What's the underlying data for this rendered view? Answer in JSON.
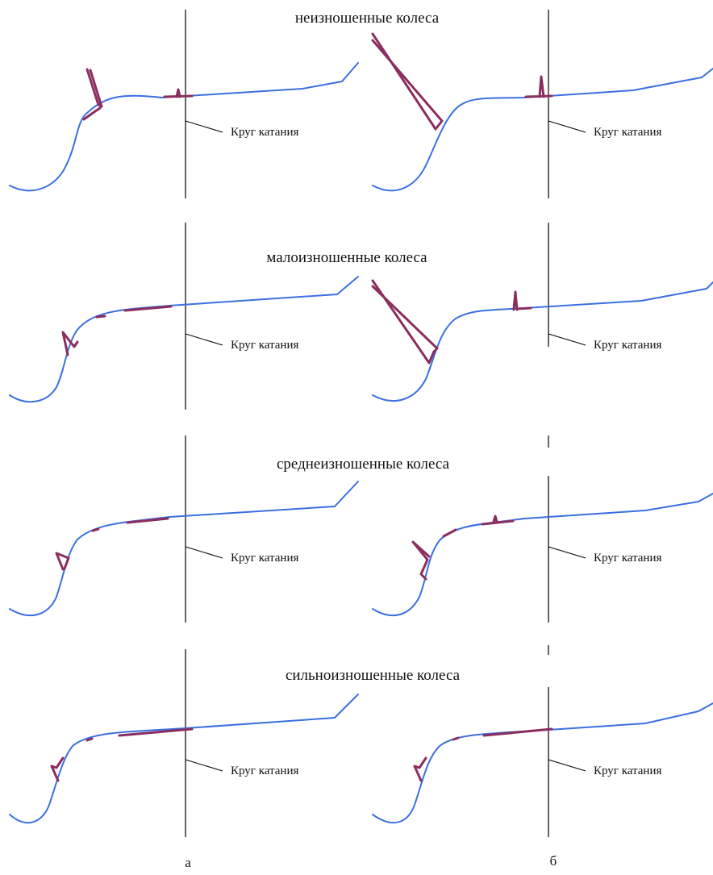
{
  "colors": {
    "profile": "#3b6fe0",
    "contact": "#8b2e5f",
    "axis": "#000000"
  },
  "rows": [
    {
      "title": "неизношенные колеса"
    },
    {
      "title": "малоизношенные колеса"
    },
    {
      "title": "среднеизношенные колеса"
    },
    {
      "title": "сильноизношенные колеса"
    }
  ],
  "rolling_circle_label": "Круг катания",
  "column_captions": {
    "left": "а",
    "right": "б"
  }
}
